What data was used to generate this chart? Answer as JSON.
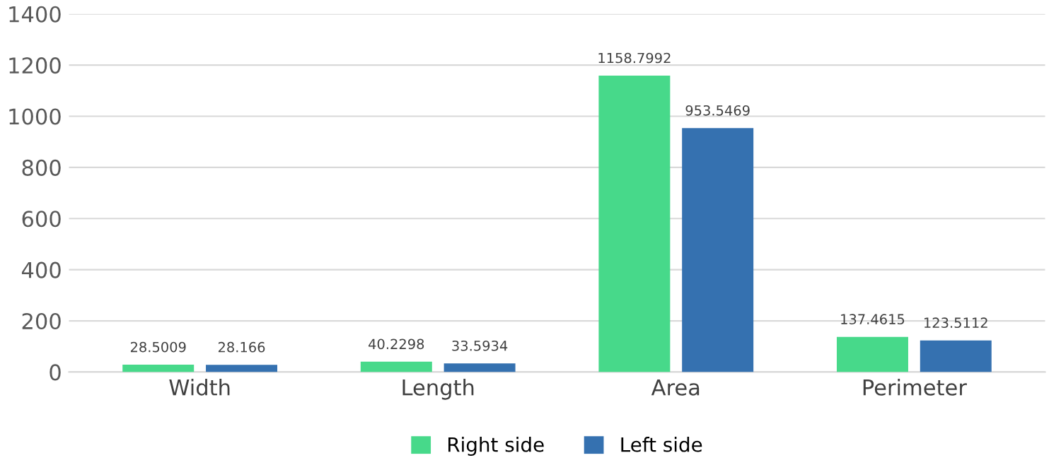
{
  "chart_data": {
    "type": "bar",
    "categories": [
      "Width",
      "Length",
      "Area",
      "Perimeter"
    ],
    "series": [
      {
        "name": "Right side",
        "color": "#47d98a",
        "values": [
          28.5009,
          40.2298,
          1158.7992,
          137.4615
        ]
      },
      {
        "name": "Left side",
        "color": "#3571b0",
        "values": [
          28.166,
          33.5934,
          953.5469,
          123.5112
        ]
      }
    ],
    "ylim": [
      0,
      1400
    ],
    "yticks": [
      0,
      200,
      400,
      600,
      800,
      1000,
      1200,
      1400
    ],
    "grid": "y",
    "legend": "bottom",
    "data_labels": true
  }
}
